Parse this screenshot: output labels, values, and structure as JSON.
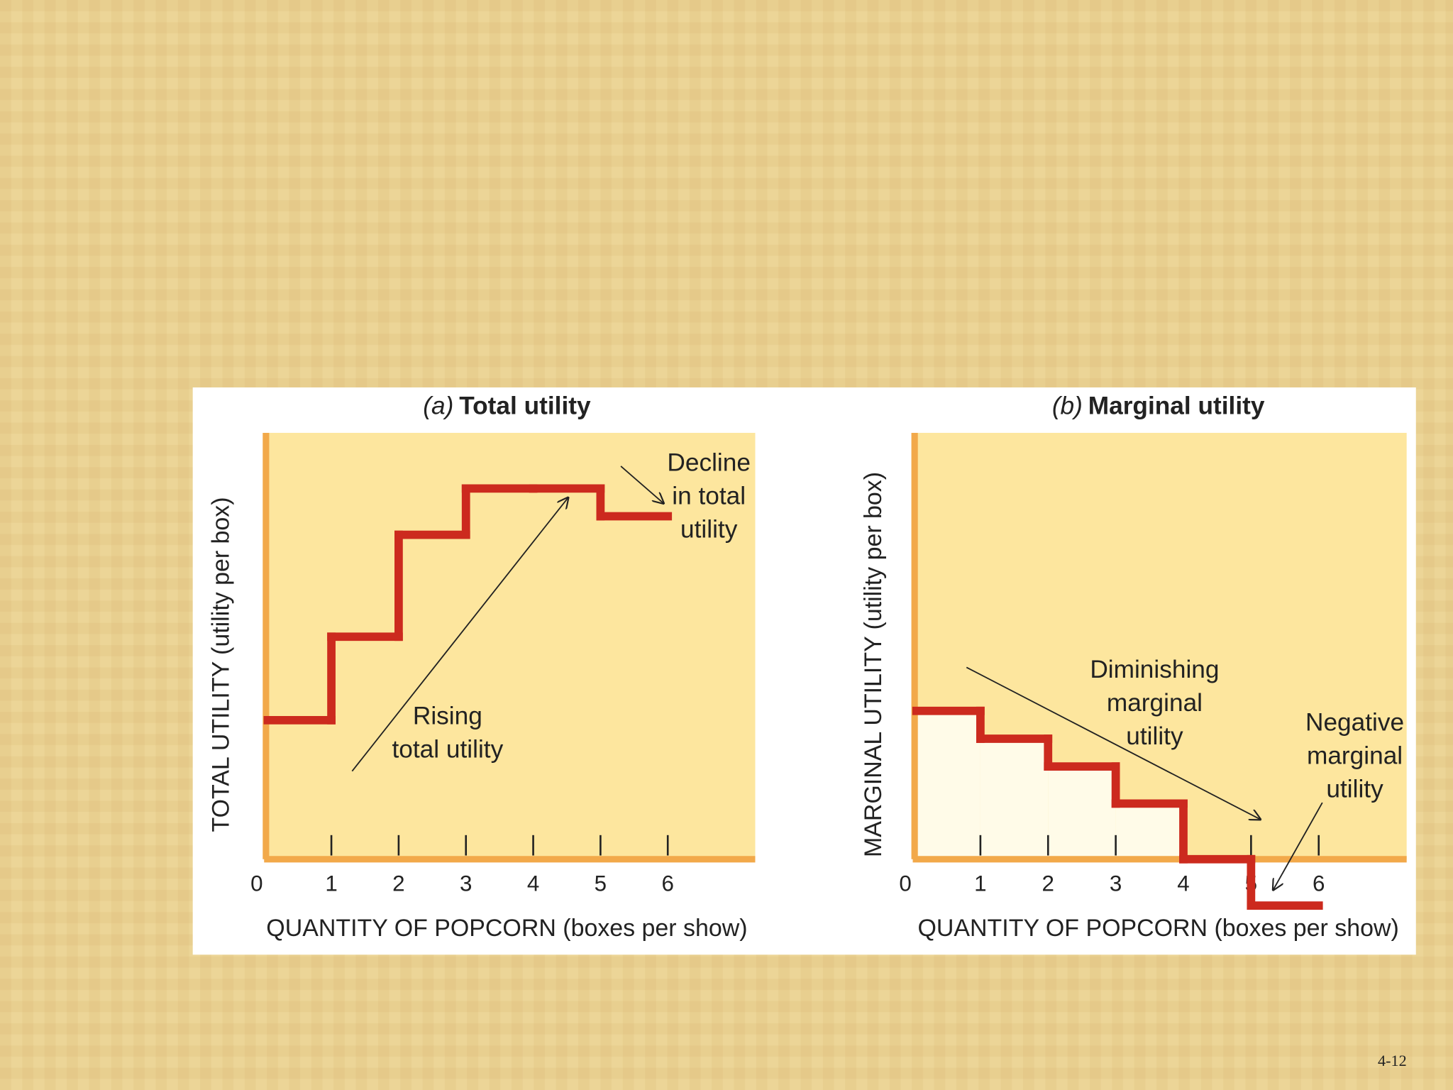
{
  "chart_data": [
    {
      "type": "step",
      "panel": "(a)",
      "title": "Total utility",
      "xlabel": "QUANTITY OF POPCORN (boxes per show)",
      "ylabel": "TOTAL UTILITY (utility per box)",
      "x": [
        0,
        1,
        2,
        3,
        4,
        5
      ],
      "values": [
        15,
        24,
        35,
        40,
        40,
        37
      ],
      "color": "#cc2a1e",
      "xlim": [
        0,
        7.3
      ],
      "ylim": [
        0,
        46
      ],
      "xticks": [
        0,
        1,
        2,
        3,
        4,
        5,
        6
      ],
      "annotations": [
        {
          "lines": [
            "Decline",
            "in total",
            "utility"
          ]
        },
        {
          "lines": [
            "Rising",
            "total utility"
          ]
        }
      ]
    },
    {
      "type": "step",
      "panel": "(b)",
      "title": "Marginal utility",
      "xlabel": "QUANTITY OF POPCORN (boxes per show)",
      "ylabel": "MARGINAL UTILITY (utility per box)",
      "x": [
        0,
        1,
        2,
        3,
        4,
        5
      ],
      "values": [
        16,
        13,
        10,
        6,
        0,
        -5
      ],
      "color": "#cc2a1e",
      "area_color": "#fffbe8",
      "xlim": [
        0,
        7.3
      ],
      "ylim": [
        0,
        46
      ],
      "xticks": [
        0,
        1,
        2,
        3,
        4,
        5,
        6
      ],
      "annotations": [
        {
          "lines": [
            "Diminishing",
            "marginal",
            "utility"
          ]
        },
        {
          "lines": [
            "Negative",
            "marginal",
            "utility"
          ]
        }
      ]
    }
  ],
  "slide_number": "4-12"
}
